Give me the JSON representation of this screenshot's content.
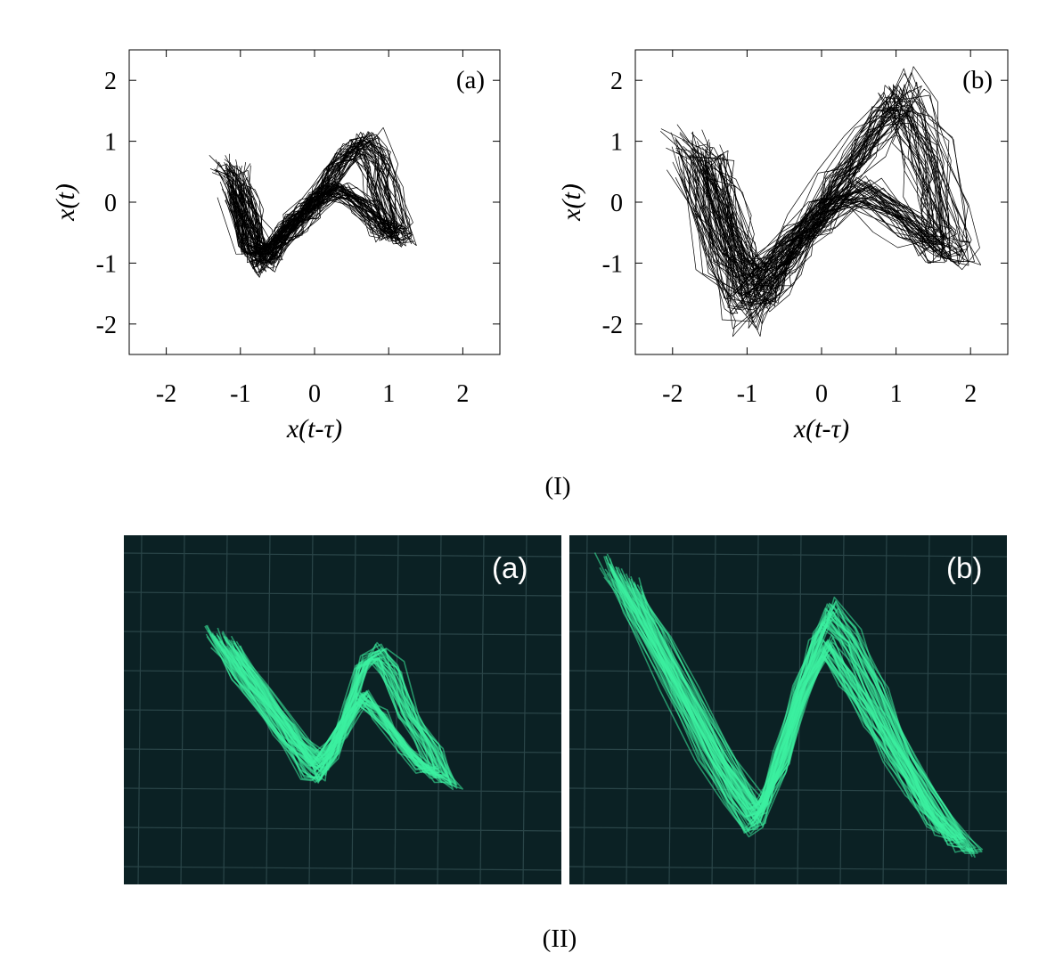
{
  "chart_data": [
    {
      "type": "scatter",
      "panel_label": "(a)",
      "xlabel": "x(t-τ)",
      "ylabel": "x(t)",
      "xlim": [
        -2.5,
        2.5
      ],
      "ylim": [
        -2.5,
        2.5
      ],
      "xticks": [
        -2,
        -1,
        0,
        1,
        2
      ],
      "yticks": [
        -2,
        -1,
        0,
        1,
        2
      ],
      "grid": false,
      "attractor_extent": {
        "x": [
          -1.3,
          1.25
        ],
        "y": [
          -1.3,
          1.3
        ]
      },
      "attractor_path": [
        [
          -1.3,
          0.65
        ],
        [
          -1.2,
          0.5
        ],
        [
          -1.05,
          -0.1
        ],
        [
          -0.9,
          -0.7
        ],
        [
          -0.8,
          -1.1
        ],
        [
          -0.65,
          -1.05
        ],
        [
          -0.5,
          -0.75
        ],
        [
          -0.3,
          -0.4
        ],
        [
          -0.1,
          -0.15
        ],
        [
          0.1,
          0.2
        ],
        [
          0.3,
          0.55
        ],
        [
          0.55,
          0.95
        ],
        [
          0.75,
          1.1
        ],
        [
          0.95,
          0.75
        ],
        [
          1.05,
          0.3
        ],
        [
          1.2,
          -0.4
        ],
        [
          1.25,
          -0.6
        ],
        [
          1.1,
          -0.55
        ],
        [
          0.8,
          -0.1
        ],
        [
          0.4,
          0.2
        ],
        [
          0.0,
          0.0
        ],
        [
          -0.4,
          -0.5
        ],
        [
          -0.75,
          -0.95
        ],
        [
          -1.0,
          -0.8
        ],
        [
          -1.2,
          0.2
        ]
      ]
    },
    {
      "type": "scatter",
      "panel_label": "(b)",
      "xlabel": "x(t-τ)",
      "ylabel": "x(t)",
      "xlim": [
        -2.5,
        2.5
      ],
      "ylim": [
        -2.5,
        2.5
      ],
      "xticks": [
        -2,
        -1,
        0,
        1,
        2
      ],
      "yticks": [
        -2,
        -1,
        0,
        1,
        2
      ],
      "grid": false,
      "attractor_extent": {
        "x": [
          -2.0,
          1.95
        ],
        "y": [
          -2.0,
          2.0
        ]
      },
      "attractor_path": [
        [
          -2.0,
          1.05
        ],
        [
          -1.8,
          0.8
        ],
        [
          -1.6,
          0.0
        ],
        [
          -1.4,
          -0.9
        ],
        [
          -1.2,
          -1.7
        ],
        [
          -1.0,
          -1.95
        ],
        [
          -0.8,
          -1.6
        ],
        [
          -0.5,
          -1.0
        ],
        [
          -0.2,
          -0.4
        ],
        [
          0.2,
          0.3
        ],
        [
          0.6,
          1.0
        ],
        [
          1.0,
          1.6
        ],
        [
          1.2,
          1.95
        ],
        [
          1.4,
          1.6
        ],
        [
          1.6,
          0.8
        ],
        [
          1.8,
          -0.2
        ],
        [
          1.95,
          -0.85
        ],
        [
          1.75,
          -0.9
        ],
        [
          1.3,
          -0.4
        ],
        [
          0.6,
          0.2
        ],
        [
          0.0,
          -0.2
        ],
        [
          -0.6,
          -0.9
        ],
        [
          -1.1,
          -1.5
        ],
        [
          -1.5,
          -1.0
        ],
        [
          -1.9,
          0.7
        ]
      ]
    }
  ],
  "section_labels": {
    "top": "(I)",
    "bottom": "(II)"
  },
  "photos": [
    {
      "label": "(a)"
    },
    {
      "label": "(b)"
    }
  ],
  "colors": {
    "trace": "#000000",
    "oscilloscope_bg": "#0b2124",
    "oscilloscope_trace": "#3cf0a0",
    "oscilloscope_grid": "#2a4548"
  }
}
